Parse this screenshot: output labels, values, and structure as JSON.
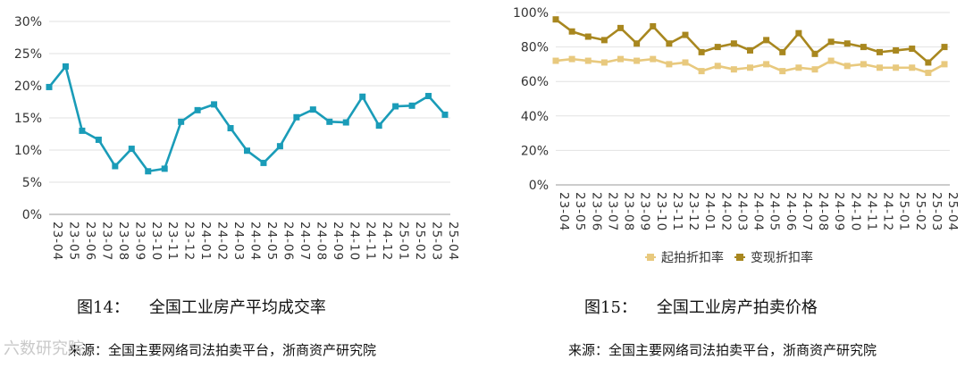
{
  "chart_data": [
    {
      "type": "line",
      "title": "全国工业房产平均成交率",
      "figure_label": "图14：",
      "source": "来源：全国主要网络司法拍卖平台，浙商资产研究院",
      "categories": [
        "23-04",
        "23-05",
        "23-06",
        "23-07",
        "23-08",
        "23-09",
        "23-10",
        "23-11",
        "23-12",
        "24-01",
        "24-02",
        "24-03",
        "24-04",
        "24-05",
        "24-06",
        "24-07",
        "24-08",
        "24-09",
        "24-10",
        "24-11",
        "24-12",
        "25-01",
        "25-02",
        "25-03",
        "25-04"
      ],
      "series": [
        {
          "values": [
            19.8,
            23.0,
            13.0,
            11.6,
            7.5,
            10.2,
            6.7,
            7.1,
            14.4,
            16.2,
            17.1,
            13.4,
            9.9,
            8.0,
            10.6,
            15.1,
            16.3,
            14.4,
            14.3,
            18.3,
            13.8,
            16.8,
            16.9,
            18.4,
            15.5
          ],
          "color": "#1a9cb8"
        }
      ],
      "yticks": [
        "0%",
        "5%",
        "10%",
        "15%",
        "20%",
        "25%",
        "30%"
      ],
      "ylim": [
        0,
        30
      ],
      "grid": true,
      "legend": "none"
    },
    {
      "type": "line",
      "title": "全国工业房产拍卖价格",
      "figure_label": "图15：",
      "source": "来源：全国主要网络司法拍卖平台，浙商资产研究院",
      "categories": [
        "23-04",
        "23-05",
        "23-06",
        "23-07",
        "23-08",
        "23-09",
        "23-10",
        "23-11",
        "23-12",
        "24-01",
        "24-02",
        "24-03",
        "24-04",
        "24-05",
        "24-06",
        "24-07",
        "24-08",
        "24-09",
        "24-10",
        "24-11",
        "24-12",
        "25-01",
        "25-02",
        "25-03",
        "25-04"
      ],
      "series": [
        {
          "name": "起拍折扣率",
          "values": [
            72,
            73,
            72,
            71,
            73,
            72,
            73,
            70,
            71,
            66,
            69,
            67,
            68,
            70,
            66,
            68,
            67,
            72,
            69,
            70,
            68,
            68,
            68,
            65,
            70
          ],
          "color": "#e8c97e"
        },
        {
          "name": "变现折扣率",
          "values": [
            96,
            89,
            86,
            84,
            91,
            82,
            92,
            82,
            87,
            77,
            80,
            82,
            78,
            84,
            77,
            88,
            76,
            83,
            82,
            80,
            77,
            78,
            79,
            71,
            80
          ],
          "color": "#a8871f"
        }
      ],
      "yticks": [
        "0%",
        "20%",
        "40%",
        "60%",
        "80%",
        "100%"
      ],
      "ylim": [
        0,
        100
      ],
      "grid": true,
      "legend": "bottom-center"
    }
  ],
  "watermark": "六数研究院"
}
